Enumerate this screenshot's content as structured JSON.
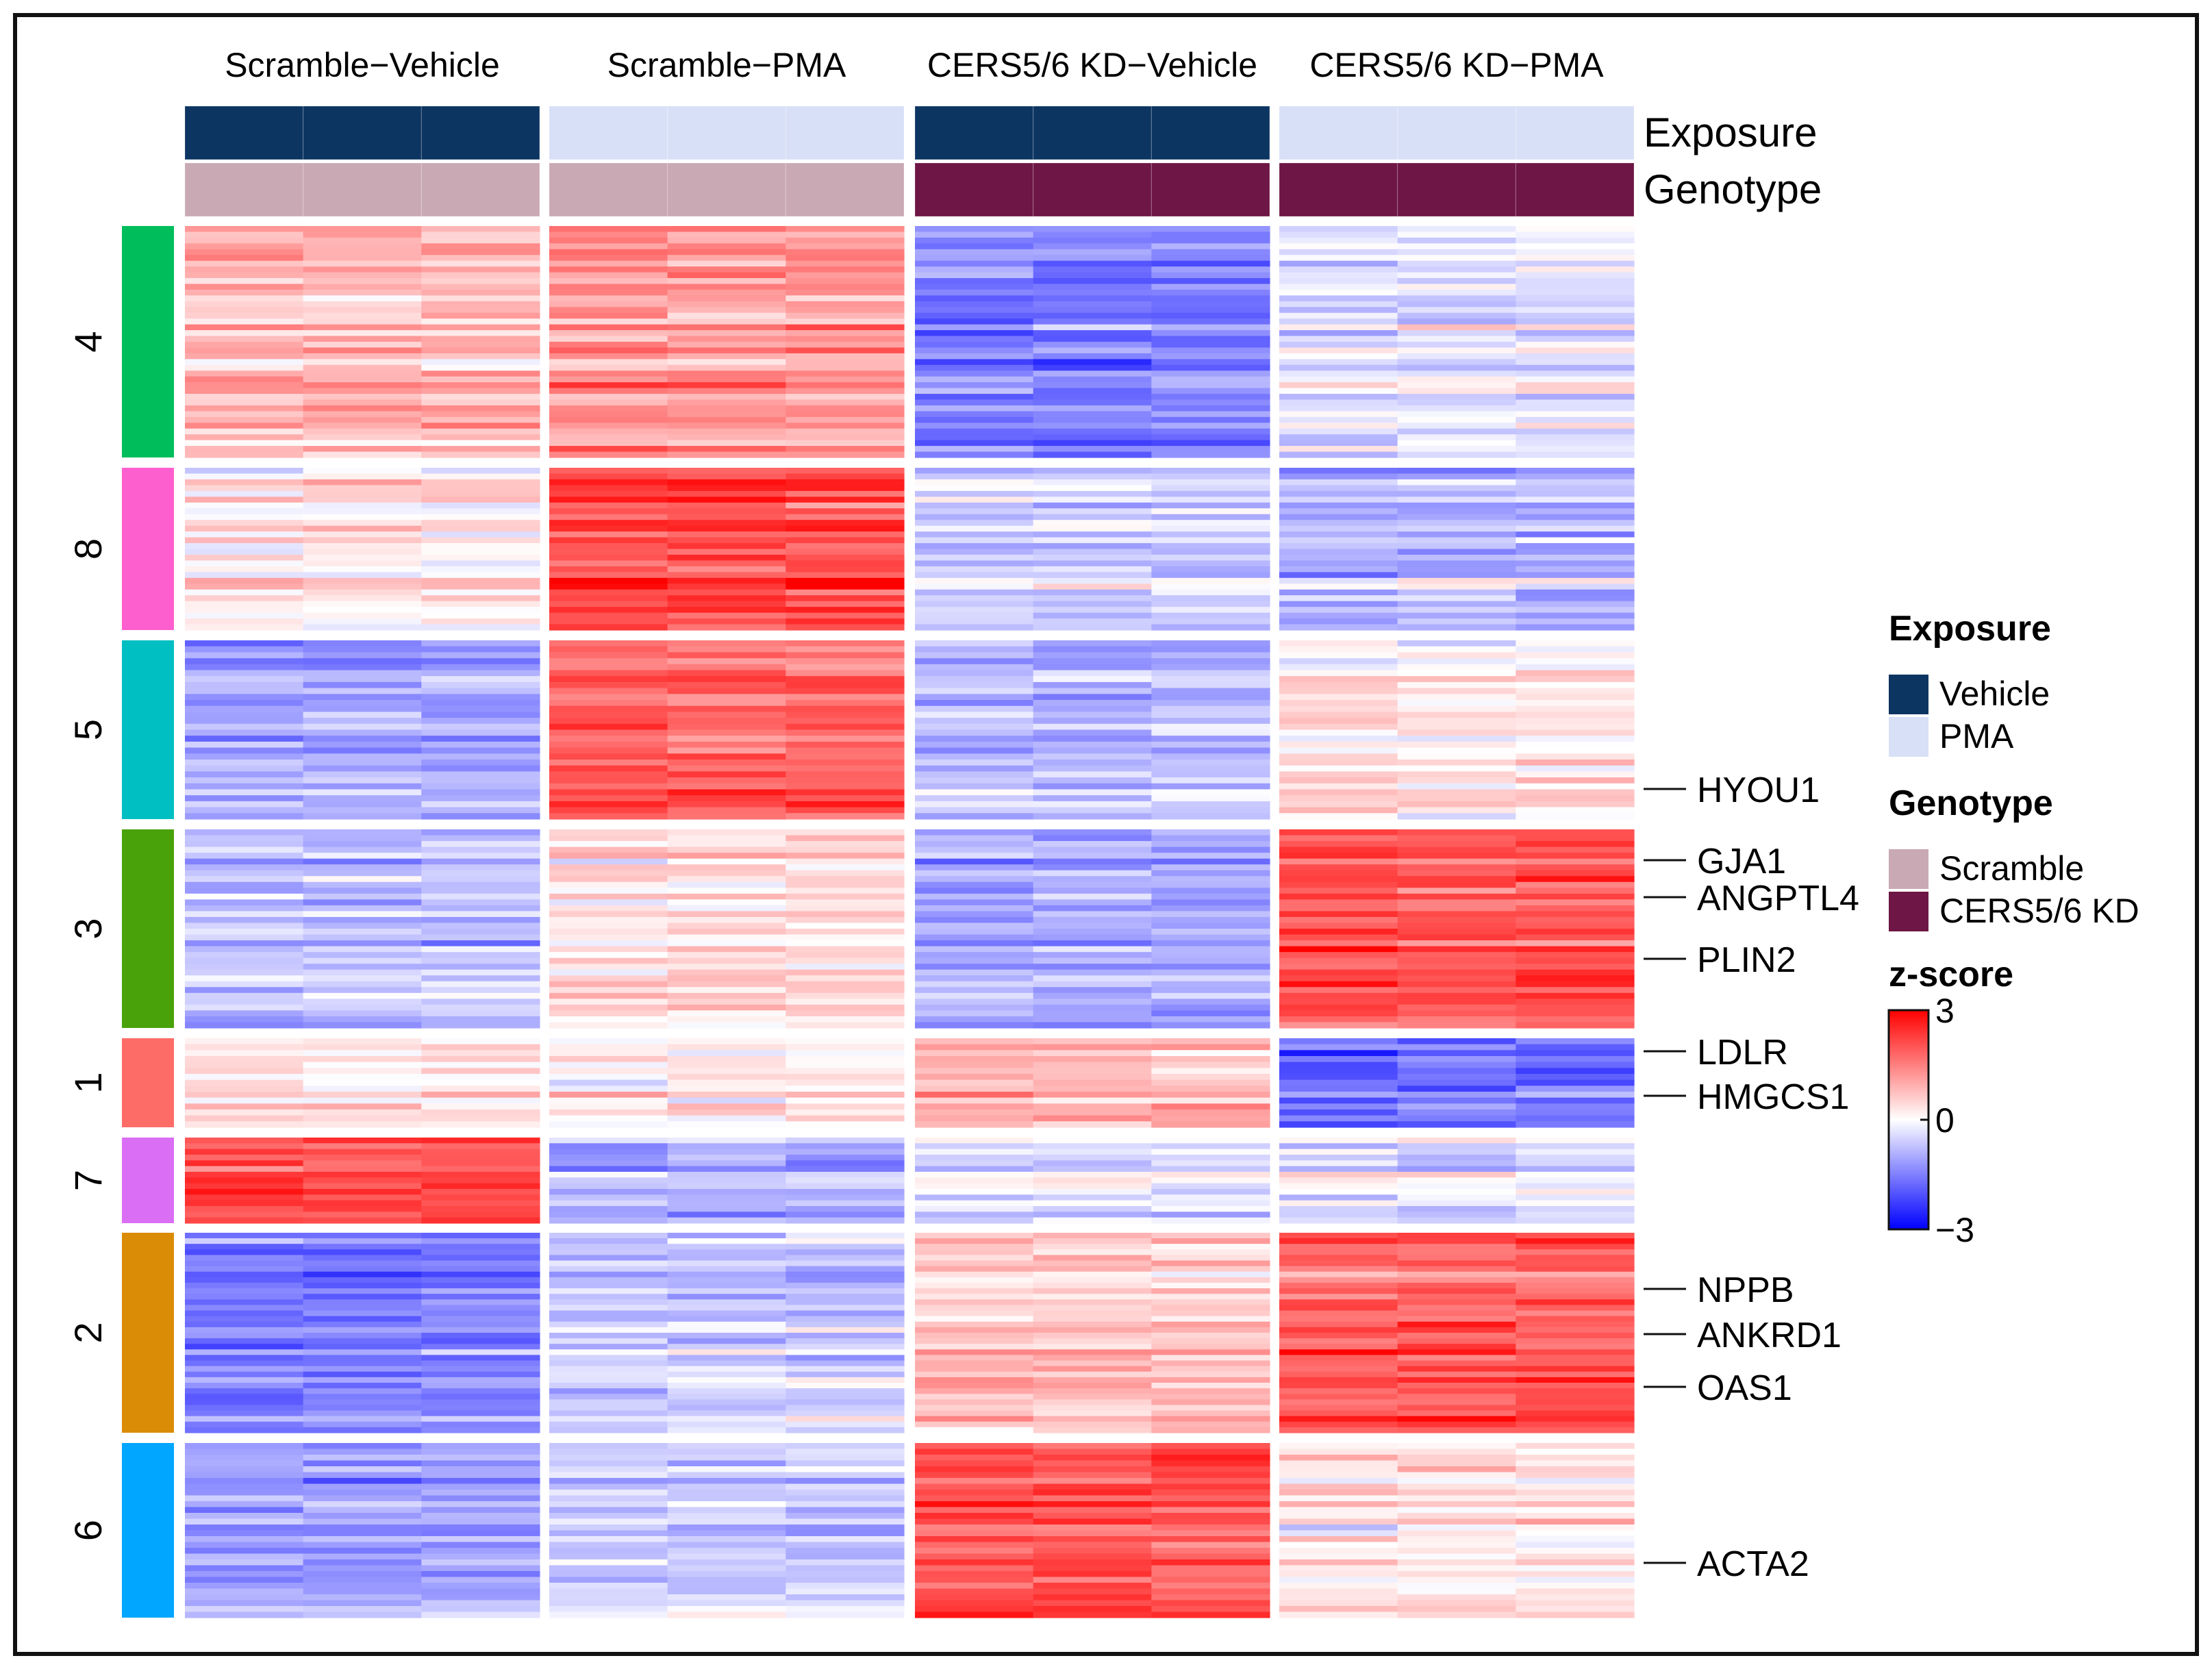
{
  "chart_data": {
    "type": "heatmap",
    "title": "",
    "colorscale": {
      "title": "z-score",
      "min": -3,
      "max": 3,
      "ticks": [
        3,
        0,
        -3
      ],
      "low_color": "#0000ff",
      "mid_color": "#ffffff",
      "high_color": "#ff0000"
    },
    "column_groups": [
      {
        "label": "Scramble−Vehicle",
        "exposure": "Vehicle",
        "genotype": "Scramble",
        "replicates": 3
      },
      {
        "label": "Scramble−PMA",
        "exposure": "PMA",
        "genotype": "Scramble",
        "replicates": 3
      },
      {
        "label": "CERS5/6 KD−Vehicle",
        "exposure": "Vehicle",
        "genotype": "CERS5/6 KD",
        "replicates": 3
      },
      {
        "label": "CERS5/6 KD−PMA",
        "exposure": "PMA",
        "genotype": "CERS5/6 KD",
        "replicates": 3
      }
    ],
    "annotation_rows": [
      {
        "label": "Exposure",
        "key": "exposure"
      },
      {
        "label": "Genotype",
        "key": "genotype"
      }
    ],
    "legend": {
      "exposure": {
        "title": "Exposure",
        "items": [
          {
            "label": "Vehicle",
            "color": "#0d3562"
          },
          {
            "label": "PMA",
            "color": "#d8e0f7"
          }
        ]
      },
      "genotype": {
        "title": "Genotype",
        "items": [
          {
            "label": "Scramble",
            "color": "#c9a9b3"
          },
          {
            "label": "CERS5/6 KD",
            "color": "#6e1645"
          }
        ]
      }
    },
    "clusters": [
      {
        "id": "4",
        "color": "#00bd5c",
        "rows": 40,
        "mean_z": [
          0.8,
          1.2,
          -1.5,
          -0.3
        ]
      },
      {
        "id": "8",
        "color": "#fe5fcf",
        "rows": 28,
        "mean_z": [
          0.2,
          2.1,
          -0.6,
          -0.9
        ]
      },
      {
        "id": "5",
        "color": "#00bfc3",
        "rows": 30,
        "mean_z": [
          -1.0,
          1.9,
          -0.8,
          0.3
        ]
      },
      {
        "id": "3",
        "color": "#49a20a",
        "rows": 34,
        "mean_z": [
          -0.7,
          0.4,
          -1.0,
          2.0
        ]
      },
      {
        "id": "1",
        "color": "#fe6c67",
        "rows": 15,
        "mean_z": [
          0.3,
          0.2,
          0.8,
          -1.7
        ]
      },
      {
        "id": "7",
        "color": "#da6ef4",
        "rows": 15,
        "mean_z": [
          2.1,
          -0.9,
          -0.3,
          -0.3
        ]
      },
      {
        "id": "2",
        "color": "#db8c07",
        "rows": 36,
        "mean_z": [
          -1.5,
          -0.6,
          0.7,
          1.9
        ]
      },
      {
        "id": "6",
        "color": "#00a6ff",
        "rows": 30,
        "mean_z": [
          -1.1,
          -0.6,
          2.0,
          0.3
        ]
      }
    ],
    "gene_labels": [
      {
        "gene": "HYOU1",
        "cluster": "5"
      },
      {
        "gene": "GJA1",
        "cluster": "3"
      },
      {
        "gene": "ANGPTL4",
        "cluster": "3"
      },
      {
        "gene": "PLIN2",
        "cluster": "3"
      },
      {
        "gene": "LDLR",
        "cluster": "1"
      },
      {
        "gene": "HMGCS1",
        "cluster": "1"
      },
      {
        "gene": "NPPB",
        "cluster": "2"
      },
      {
        "gene": "ANKRD1",
        "cluster": "2"
      },
      {
        "gene": "OAS1",
        "cluster": "2"
      },
      {
        "gene": "ACTA2",
        "cluster": "6"
      }
    ]
  }
}
